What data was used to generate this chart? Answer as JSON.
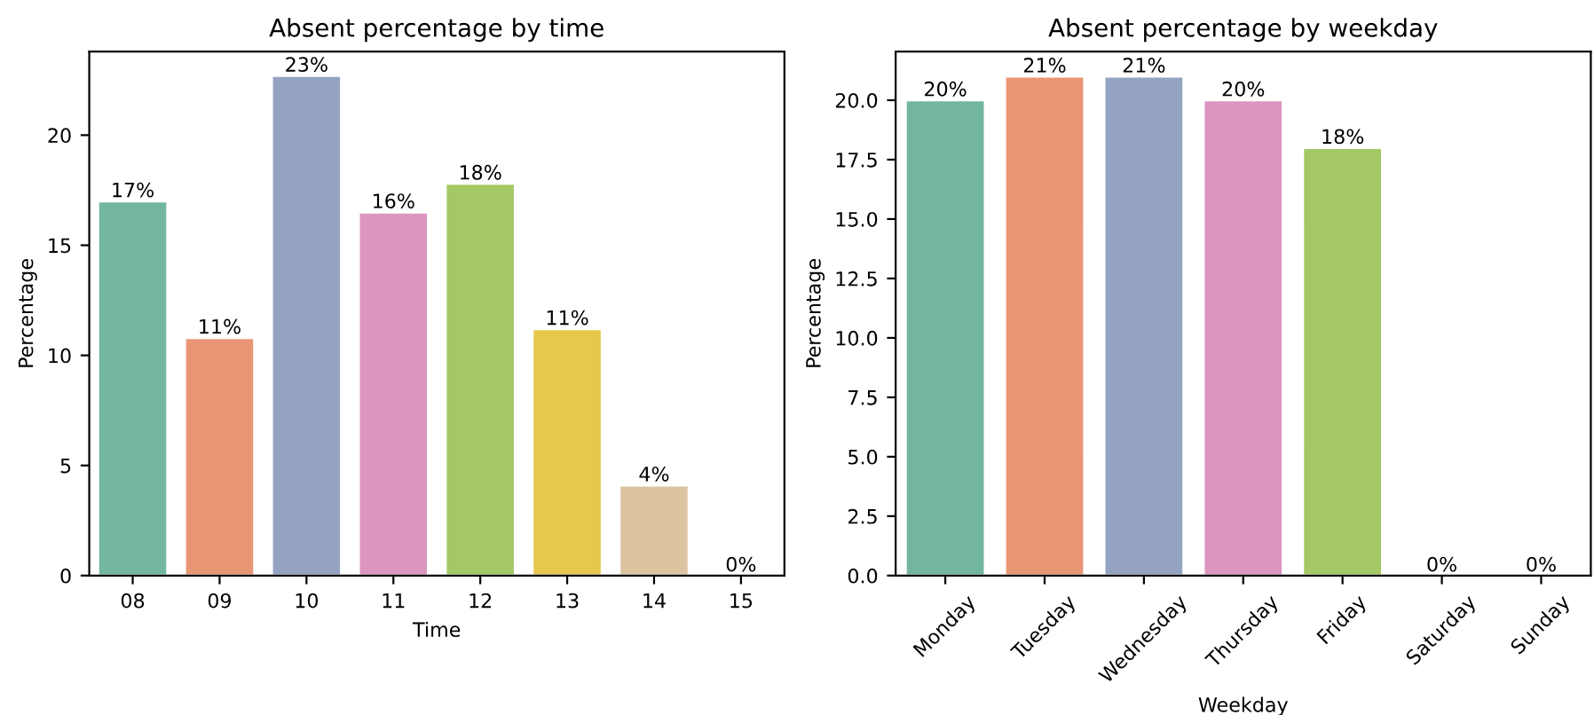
{
  "chart_data": [
    {
      "type": "bar",
      "title": "Absent percentage by time",
      "xlabel": "Time",
      "ylabel": "Percentage",
      "categories": [
        "08",
        "09",
        "10",
        "11",
        "12",
        "13",
        "14",
        "15"
      ],
      "values": [
        17.0,
        10.8,
        22.7,
        16.5,
        17.8,
        11.2,
        4.1,
        0
      ],
      "colors": [
        "#72b6a1",
        "#e99675",
        "#95a3c3",
        "#db96c0",
        "#a4c865",
        "#e5c84c",
        "#dbc49f",
        null
      ],
      "value_labels": [
        "17%",
        "11%",
        "23%",
        "16%",
        "18%",
        "11%",
        "4%",
        "0%"
      ],
      "ylim": [
        0,
        23.8
      ],
      "yticks": [
        0,
        5,
        10,
        15,
        20
      ],
      "grid": false
    },
    {
      "type": "bar",
      "title": "Absent percentage by weekday",
      "xlabel": "Weekday",
      "ylabel": "Percentage",
      "categories": [
        "Monday",
        "Tuesday",
        "Wednesday",
        "Thursday",
        "Friday",
        "Saturday",
        "Sunday"
      ],
      "values": [
        20,
        21,
        21,
        20,
        18,
        0,
        0
      ],
      "colors": [
        "#72b6a1",
        "#e99675",
        "#95a3c3",
        "#db96c0",
        "#a4c865",
        null,
        null
      ],
      "value_labels": [
        "20%",
        "21%",
        "21%",
        "20%",
        "18%",
        "0%",
        "0%"
      ],
      "ylim": [
        0,
        22.05
      ],
      "yticks": [
        {
          "value": 0,
          "label": "0.0"
        },
        {
          "value": 2.5,
          "label": "2.5"
        },
        {
          "value": 5,
          "label": "5.0"
        },
        {
          "value": 7.5,
          "label": "7.5"
        },
        {
          "value": 10,
          "label": "10.0"
        },
        {
          "value": 12.5,
          "label": "12.5"
        },
        {
          "value": 15,
          "label": "15.0"
        },
        {
          "value": 17.5,
          "label": "17.5"
        },
        {
          "value": 20,
          "label": "20.0"
        }
      ],
      "grid": false
    }
  ]
}
